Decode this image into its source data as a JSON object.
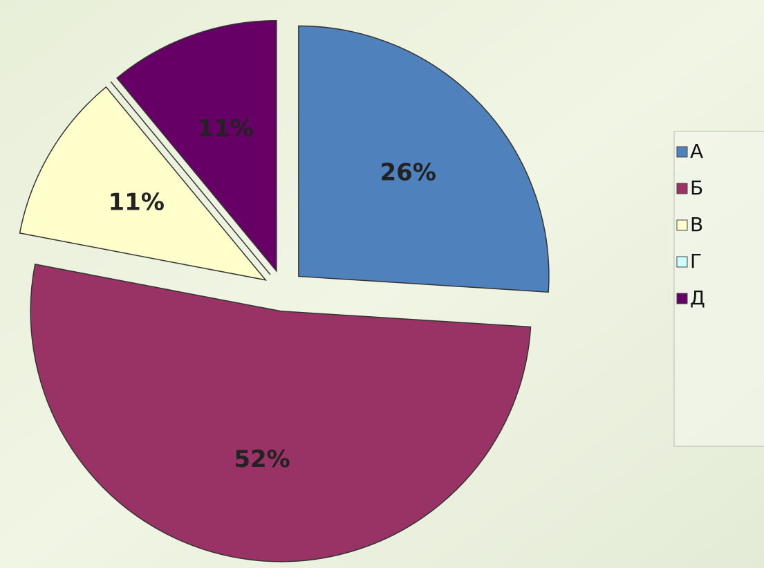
{
  "chart_data": {
    "type": "pie",
    "categories": [
      "А",
      "Б",
      "В",
      "Г",
      "Д"
    ],
    "values": [
      26,
      52,
      11,
      0,
      11
    ],
    "value_labels": [
      "26%",
      "52%",
      "11%",
      null,
      "11%"
    ],
    "colors": [
      "#4f81bd",
      "#993366",
      "#ffffcc",
      "#ccffff",
      "#660066"
    ],
    "legend": "right"
  }
}
